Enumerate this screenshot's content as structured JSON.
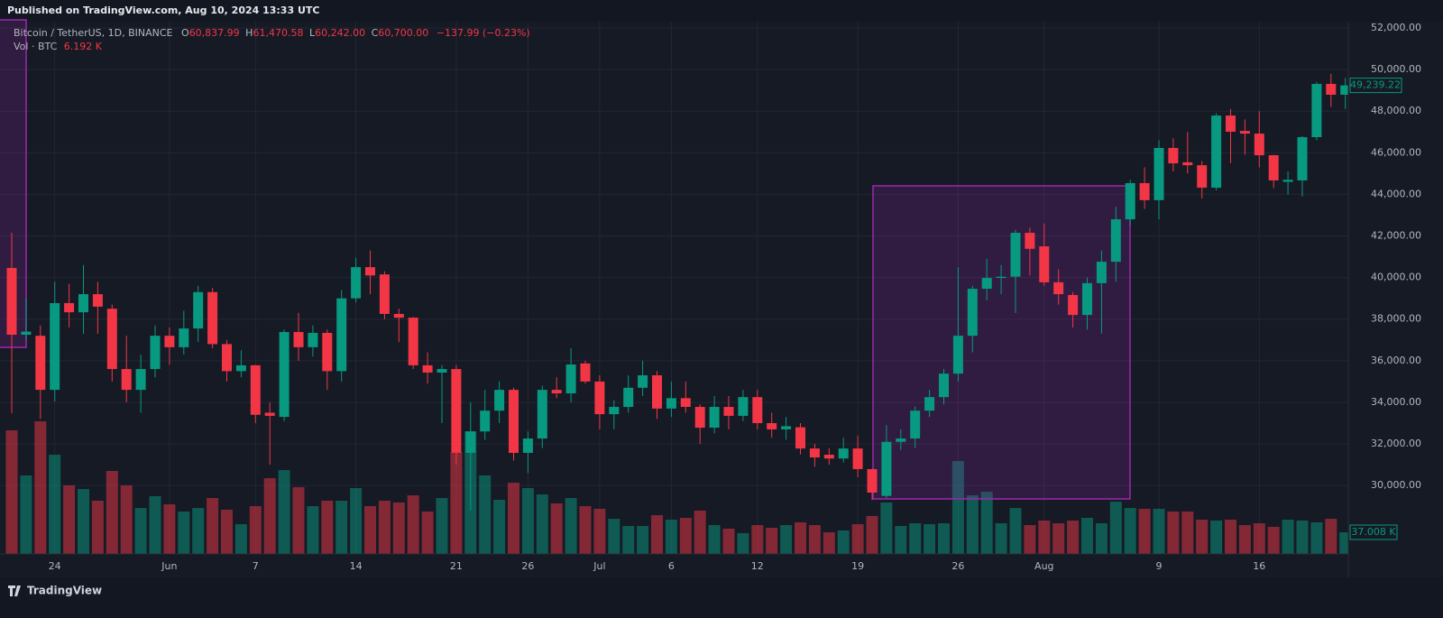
{
  "header": {
    "published": "Published on TradingView.com, Aug 10, 2024 13:33 UTC"
  },
  "footer": {
    "brand": "TradingView"
  },
  "chart_data": {
    "type": "candlestick",
    "symbol": "Bitcoin / TetherUS, 1D, BINANCE",
    "ohlc_legend": [
      {
        "key": "O",
        "value": "60,837.99"
      },
      {
        "key": "H",
        "value": "61,470.58"
      },
      {
        "key": "L",
        "value": "60,242.00"
      },
      {
        "key": "C",
        "value": "60,700.00"
      }
    ],
    "change": "−137.99 (−0.23%)",
    "volume_legend": {
      "key": "Vol · BTC",
      "value": "6.192 K"
    },
    "colors": {
      "up": "#089981",
      "down": "#f23645",
      "drawing": "#9c27b0"
    },
    "open": [
      40460,
      37250,
      37200,
      34600,
      38770,
      38330,
      39200,
      38500,
      35600,
      34600,
      35600,
      37200,
      36650,
      37550,
      39300,
      36800,
      35500,
      35780,
      33500,
      33300,
      37380,
      36650,
      37340,
      35500,
      39000,
      40500,
      40150,
      38250,
      38070,
      35780,
      35430,
      35600,
      31570,
      32600,
      33600,
      34600,
      31570,
      32260,
      34600,
      34430,
      35870,
      35000,
      33430,
      33780,
      34700,
      35300,
      33700,
      34200,
      33780,
      32780,
      33780,
      33350,
      34250,
      33000,
      32700,
      32800,
      31780,
      31480,
      31300,
      31780,
      30790,
      29500,
      32100,
      32260,
      33600,
      34250,
      35380,
      37200,
      39460,
      39980,
      40040,
      42150,
      41500,
      39770,
      39160,
      38200,
      39730,
      40760,
      42800,
      44540,
      43720,
      46230,
      45540,
      45400,
      44320,
      47790,
      47050,
      46920,
      45880,
      44600,
      44670,
      46750,
      49310,
      48790
    ],
    "high": [
      42150,
      39000,
      37700,
      39800,
      39700,
      40600,
      39800,
      38700,
      37200,
      36300,
      37700,
      37600,
      38400,
      39600,
      39500,
      37000,
      36500,
      35800,
      34000,
      37500,
      38300,
      37700,
      37500,
      39400,
      40950,
      41300,
      40300,
      38500,
      38100,
      36400,
      35800,
      35800,
      34000,
      34600,
      35000,
      34700,
      32600,
      34800,
      35200,
      36600,
      36000,
      35300,
      34100,
      35300,
      36000,
      35500,
      35000,
      35000,
      33900,
      34300,
      34300,
      34600,
      34600,
      33500,
      33300,
      33000,
      32000,
      31800,
      32300,
      32400,
      30800,
      32900,
      32700,
      33800,
      34600,
      35600,
      40500,
      39600,
      40900,
      40600,
      42300,
      42400,
      42600,
      40400,
      39300,
      40000,
      41300,
      43400,
      44700,
      45300,
      46600,
      46700,
      47000,
      45600,
      47900,
      48100,
      47600,
      48000,
      45900,
      45100,
      46800,
      49400,
      49800,
      49600
    ],
    "low": [
      33480,
      37000,
      33200,
      34040,
      37600,
      37300,
      37300,
      35000,
      34000,
      33500,
      35200,
      35800,
      36300,
      36900,
      36600,
      35000,
      35200,
      33000,
      31000,
      33100,
      36000,
      36200,
      34600,
      35000,
      38800,
      39200,
      38000,
      36900,
      35600,
      34900,
      33000,
      31000,
      28800,
      32200,
      33000,
      31200,
      30600,
      31800,
      34200,
      34000,
      34900,
      32700,
      32700,
      33500,
      34300,
      33200,
      33300,
      33500,
      32000,
      32500,
      32700,
      33100,
      32700,
      32300,
      32200,
      31500,
      30900,
      31000,
      31100,
      30400,
      29300,
      29400,
      31700,
      31800,
      33300,
      33900,
      35000,
      36400,
      38900,
      39200,
      38300,
      40100,
      39600,
      38700,
      37600,
      37500,
      37300,
      39800,
      42500,
      43300,
      42800,
      45100,
      45000,
      43800,
      44200,
      45500,
      45900,
      45300,
      44300,
      44000,
      43900,
      46600,
      48200,
      48100
    ],
    "close": [
      37250,
      37400,
      34600,
      38770,
      38330,
      39200,
      38600,
      35600,
      34600,
      35600,
      37200,
      36650,
      37550,
      39300,
      36800,
      35500,
      35780,
      33400,
      33350,
      37380,
      36650,
      37340,
      35500,
      39000,
      40500,
      40100,
      38250,
      38070,
      35780,
      35430,
      35600,
      31570,
      32600,
      33600,
      34600,
      31570,
      32260,
      34600,
      34430,
      35820,
      35000,
      33430,
      33780,
      34700,
      35300,
      33700,
      34200,
      33780,
      32780,
      33780,
      33350,
      34250,
      33000,
      32700,
      32850,
      31780,
      31350,
      31300,
      31780,
      30790,
      29660,
      32100,
      32260,
      33600,
      34250,
      35380,
      37200,
      39460,
      39980,
      40040,
      42150,
      41380,
      39770,
      39200,
      38200,
      39730,
      40760,
      42800,
      44540,
      43720,
      46230,
      45490,
      45400,
      44320,
      47790,
      47010,
      46920,
      45880,
      44670,
      44700,
      46750,
      49310,
      48790,
      49239.22
    ],
    "volume": [
      211.3,
      134.2,
      226.7,
      169.6,
      117.2,
      111.0,
      91.0,
      141.9,
      117.2,
      78.6,
      98.7,
      84.8,
      72.5,
      78.6,
      95.6,
      75.6,
      50.9,
      81.7,
      129.5,
      143.4,
      114.1,
      81.7,
      91.0,
      91.0,
      112.6,
      81.7,
      91.0,
      87.9,
      100.2,
      72.5,
      95.6,
      174.2,
      209.7,
      134.2,
      92.5,
      121.8,
      112.6,
      101.8,
      86.4,
      95.6,
      81.7,
      77.1,
      60.1,
      47.8,
      47.8,
      66.3,
      58.6,
      61.7,
      74.0,
      49.3,
      43.2,
      35.5,
      49.3,
      44.7,
      49.3,
      54.0,
      49.3,
      37.0,
      40.1,
      50.9,
      64.8,
      87.9,
      47.8,
      52.4,
      50.9,
      52.4,
      158.8,
      100.2,
      106.4,
      52.4,
      78.6,
      49.3,
      57.1,
      52.4,
      57.1,
      61.7,
      52.4,
      89.4,
      78.6,
      77.1,
      77.1,
      72.5,
      72.5,
      58.6,
      57.1,
      58.6,
      49.3,
      52.4,
      46.3,
      58.6,
      57.1,
      54.0,
      60.1,
      37.008
    ],
    "last_price_label": "49,239.22",
    "last_volume_label": "37.008 K",
    "ylim": [
      26710,
      52390
    ],
    "volume_lim": [
      0,
      913
    ],
    "yticks": [
      {
        "value": 30000,
        "label": "30,000.00"
      },
      {
        "value": 32000,
        "label": "32,000.00"
      },
      {
        "value": 34000,
        "label": "34,000.00"
      },
      {
        "value": 36000,
        "label": "36,000.00"
      },
      {
        "value": 38000,
        "label": "38,000.00"
      },
      {
        "value": 40000,
        "label": "40,000.00"
      },
      {
        "value": 42000,
        "label": "42,000.00"
      },
      {
        "value": 44000,
        "label": "44,000.00"
      },
      {
        "value": 46000,
        "label": "46,000.00"
      },
      {
        "value": 48000,
        "label": "48,000.00"
      },
      {
        "value": 50000,
        "label": "50,000.00"
      },
      {
        "value": 52000,
        "label": "52,000.00"
      }
    ],
    "xticks": [
      {
        "value": 3,
        "label": "24"
      },
      {
        "value": 11,
        "label": "Jun"
      },
      {
        "value": 17,
        "label": "7"
      },
      {
        "value": 24,
        "label": "14"
      },
      {
        "value": 31,
        "label": "21"
      },
      {
        "value": 36,
        "label": "26"
      },
      {
        "value": 41,
        "label": "Jul"
      },
      {
        "value": 46,
        "label": "6"
      },
      {
        "value": 52,
        "label": "12"
      },
      {
        "value": 59,
        "label": "19"
      },
      {
        "value": 66,
        "label": "26"
      },
      {
        "value": 72,
        "label": "Aug"
      },
      {
        "value": 80,
        "label": "9"
      },
      {
        "value": 87,
        "label": "16"
      }
    ],
    "grid": true
  }
}
